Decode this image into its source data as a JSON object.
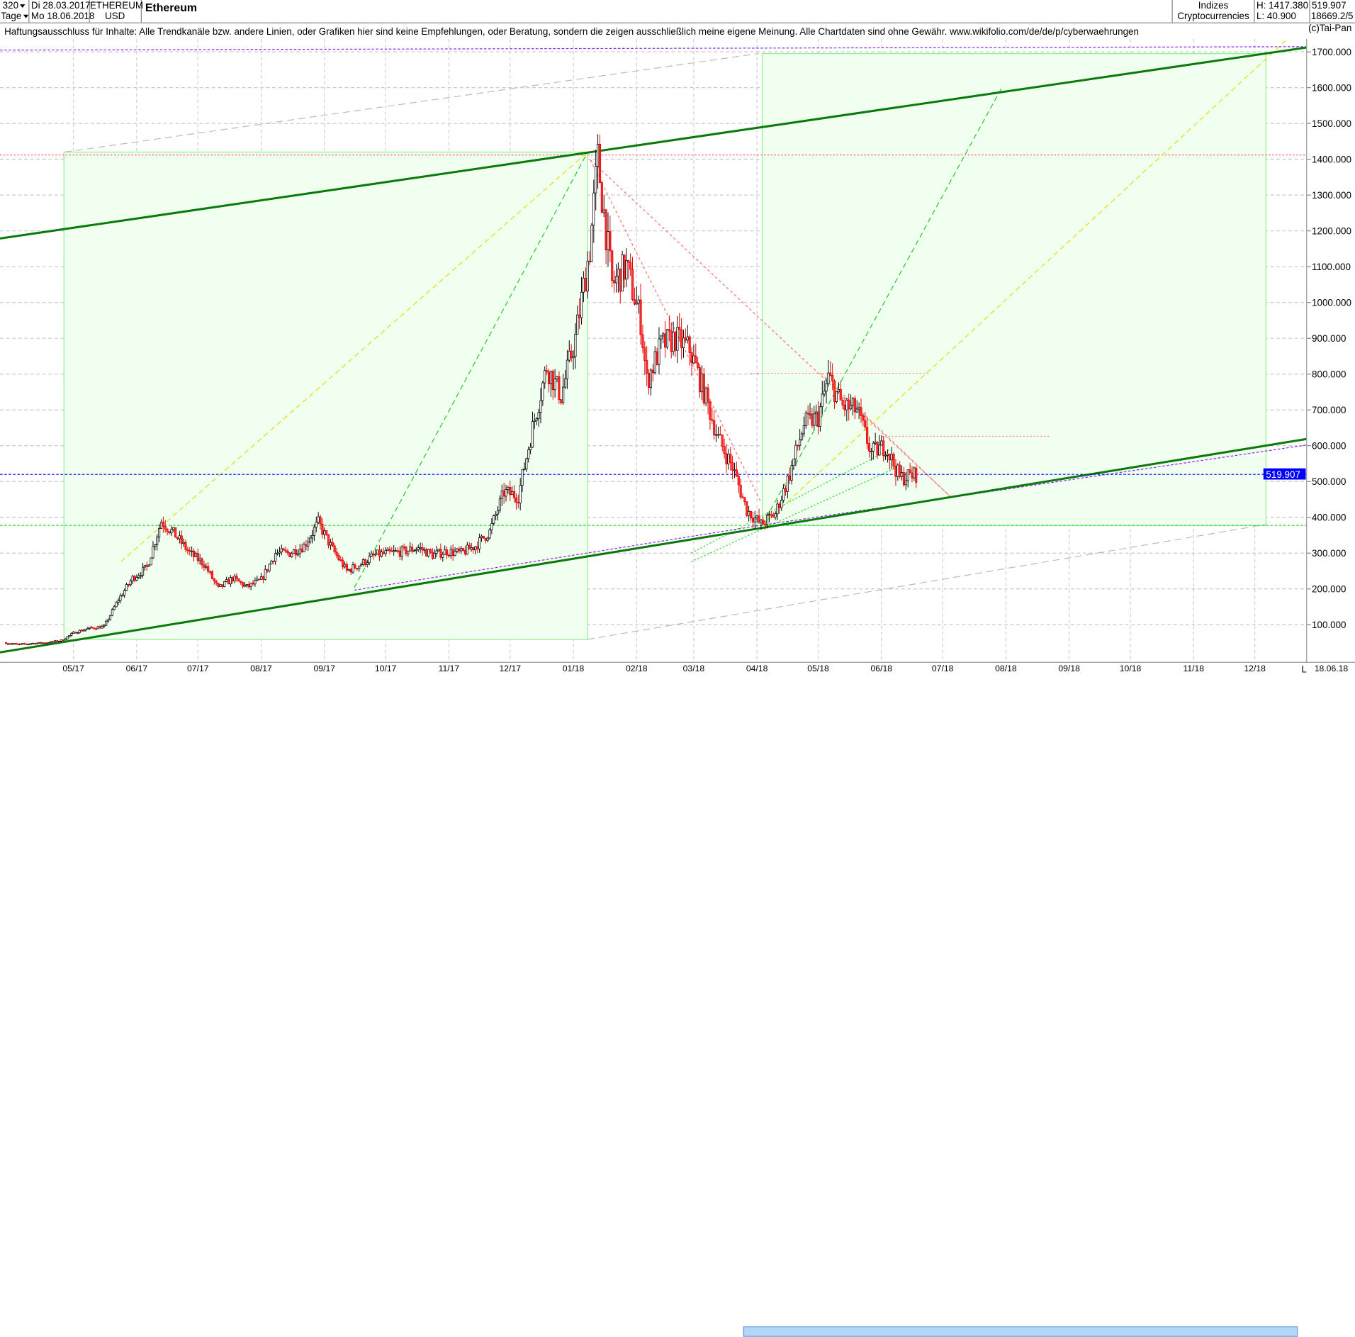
{
  "header": {
    "period_value": "320",
    "period_unit": "Tage",
    "date_from": "Di 28.03.2017",
    "date_to": "Mo 18.06.2018",
    "symbol": "ETHEREUM",
    "currency": "USD",
    "title": "Ethereum",
    "group": "Indizes",
    "subgroup": "Cryptocurrencies",
    "high": "H: 1417.380",
    "low": "L: 40.900",
    "last": "519.907",
    "extra": "18669.2/5"
  },
  "disclaimer": "Haftungsausschluss für Inhalte: Alle Trendkanäle bzw. andere Linien, oder Grafiken hier sind keine Empfehlungen, oder Beratung, sondern die zeigen ausschließlich meine eigene Meinung. Alle Chartdaten sind ohne Gewähr.  www.wikifolio.com/de/de/p/cyberwaehrungen",
  "copyright": "(c)Tai-Pan",
  "xaxis_end_label": "L",
  "xaxis_date": "18.06.18",
  "colors": {
    "up_candle": "#ffffff",
    "down_candle": "#ff3030",
    "channel": "#0a7a0a",
    "last_price": "#0000ff",
    "box_fill": "#f0fff0",
    "box_stroke": "#90ee90"
  },
  "chart_data": {
    "type": "candlestick",
    "title": "Ethereum",
    "x_tick_labels": [
      "05/17",
      "06/17",
      "07/17",
      "08/17",
      "09/17",
      "10/17",
      "11/17",
      "12/17",
      "01/18",
      "02/18",
      "03/18",
      "04/18",
      "05/18",
      "06/18",
      "07/18",
      "08/18",
      "09/18",
      "10/18",
      "11/18",
      "12/18"
    ],
    "y_tick_labels": [
      "100.000",
      "200.000",
      "300.000",
      "400.000",
      "500.000",
      "600.000",
      "700.000",
      "800.000",
      "900.000",
      "1000.000",
      "1100.000",
      "1200.000",
      "1300.000",
      "1400.000",
      "1500.000",
      "1600.000",
      "1700.000"
    ],
    "ylim": [
      0,
      1750
    ],
    "grid": true,
    "last_price": 519.907,
    "last_price_label": "519.907",
    "high": 1417.38,
    "low": 40.9,
    "series": [
      {
        "dates": [
          "2017-03-28",
          "2017-04-04",
          "2017-04-11",
          "2017-04-18",
          "2017-04-25",
          "2017-05-02",
          "2017-05-09",
          "2017-05-16",
          "2017-05-23",
          "2017-05-30",
          "2017-06-06",
          "2017-06-13",
          "2017-06-20",
          "2017-06-27",
          "2017-07-04",
          "2017-07-11",
          "2017-07-18",
          "2017-07-25",
          "2017-08-01",
          "2017-08-08",
          "2017-08-15",
          "2017-08-22",
          "2017-08-29",
          "2017-09-05",
          "2017-09-12",
          "2017-09-19",
          "2017-09-26",
          "2017-10-03",
          "2017-10-10",
          "2017-10-17",
          "2017-10-24",
          "2017-10-31",
          "2017-11-07",
          "2017-11-14",
          "2017-11-21",
          "2017-11-28",
          "2017-12-05",
          "2017-12-12",
          "2017-12-19",
          "2017-12-26",
          "2018-01-02",
          "2018-01-09",
          "2018-01-13",
          "2018-01-20",
          "2018-01-27",
          "2018-02-03",
          "2018-02-06",
          "2018-02-13",
          "2018-02-20",
          "2018-02-27",
          "2018-03-06",
          "2018-03-13",
          "2018-03-20",
          "2018-03-27",
          "2018-04-03",
          "2018-04-10",
          "2018-04-17",
          "2018-04-24",
          "2018-05-01",
          "2018-05-06",
          "2018-05-13",
          "2018-05-20",
          "2018-05-27",
          "2018-06-03",
          "2018-06-10",
          "2018-06-18"
        ],
        "close": [
          50,
          45,
          48,
          50,
          56,
          80,
          90,
          95,
          170,
          230,
          260,
          390,
          350,
          300,
          270,
          200,
          230,
          205,
          225,
          300,
          300,
          320,
          385,
          310,
          250,
          270,
          295,
          300,
          305,
          315,
          295,
          305,
          300,
          320,
          360,
          470,
          460,
          650,
          820,
          740,
          900,
          1150,
          1400,
          1050,
          1100,
          950,
          780,
          880,
          900,
          870,
          750,
          620,
          540,
          420,
          380,
          410,
          520,
          660,
          680,
          790,
          710,
          700,
          580,
          600,
          510,
          520
        ]
      }
    ]
  }
}
